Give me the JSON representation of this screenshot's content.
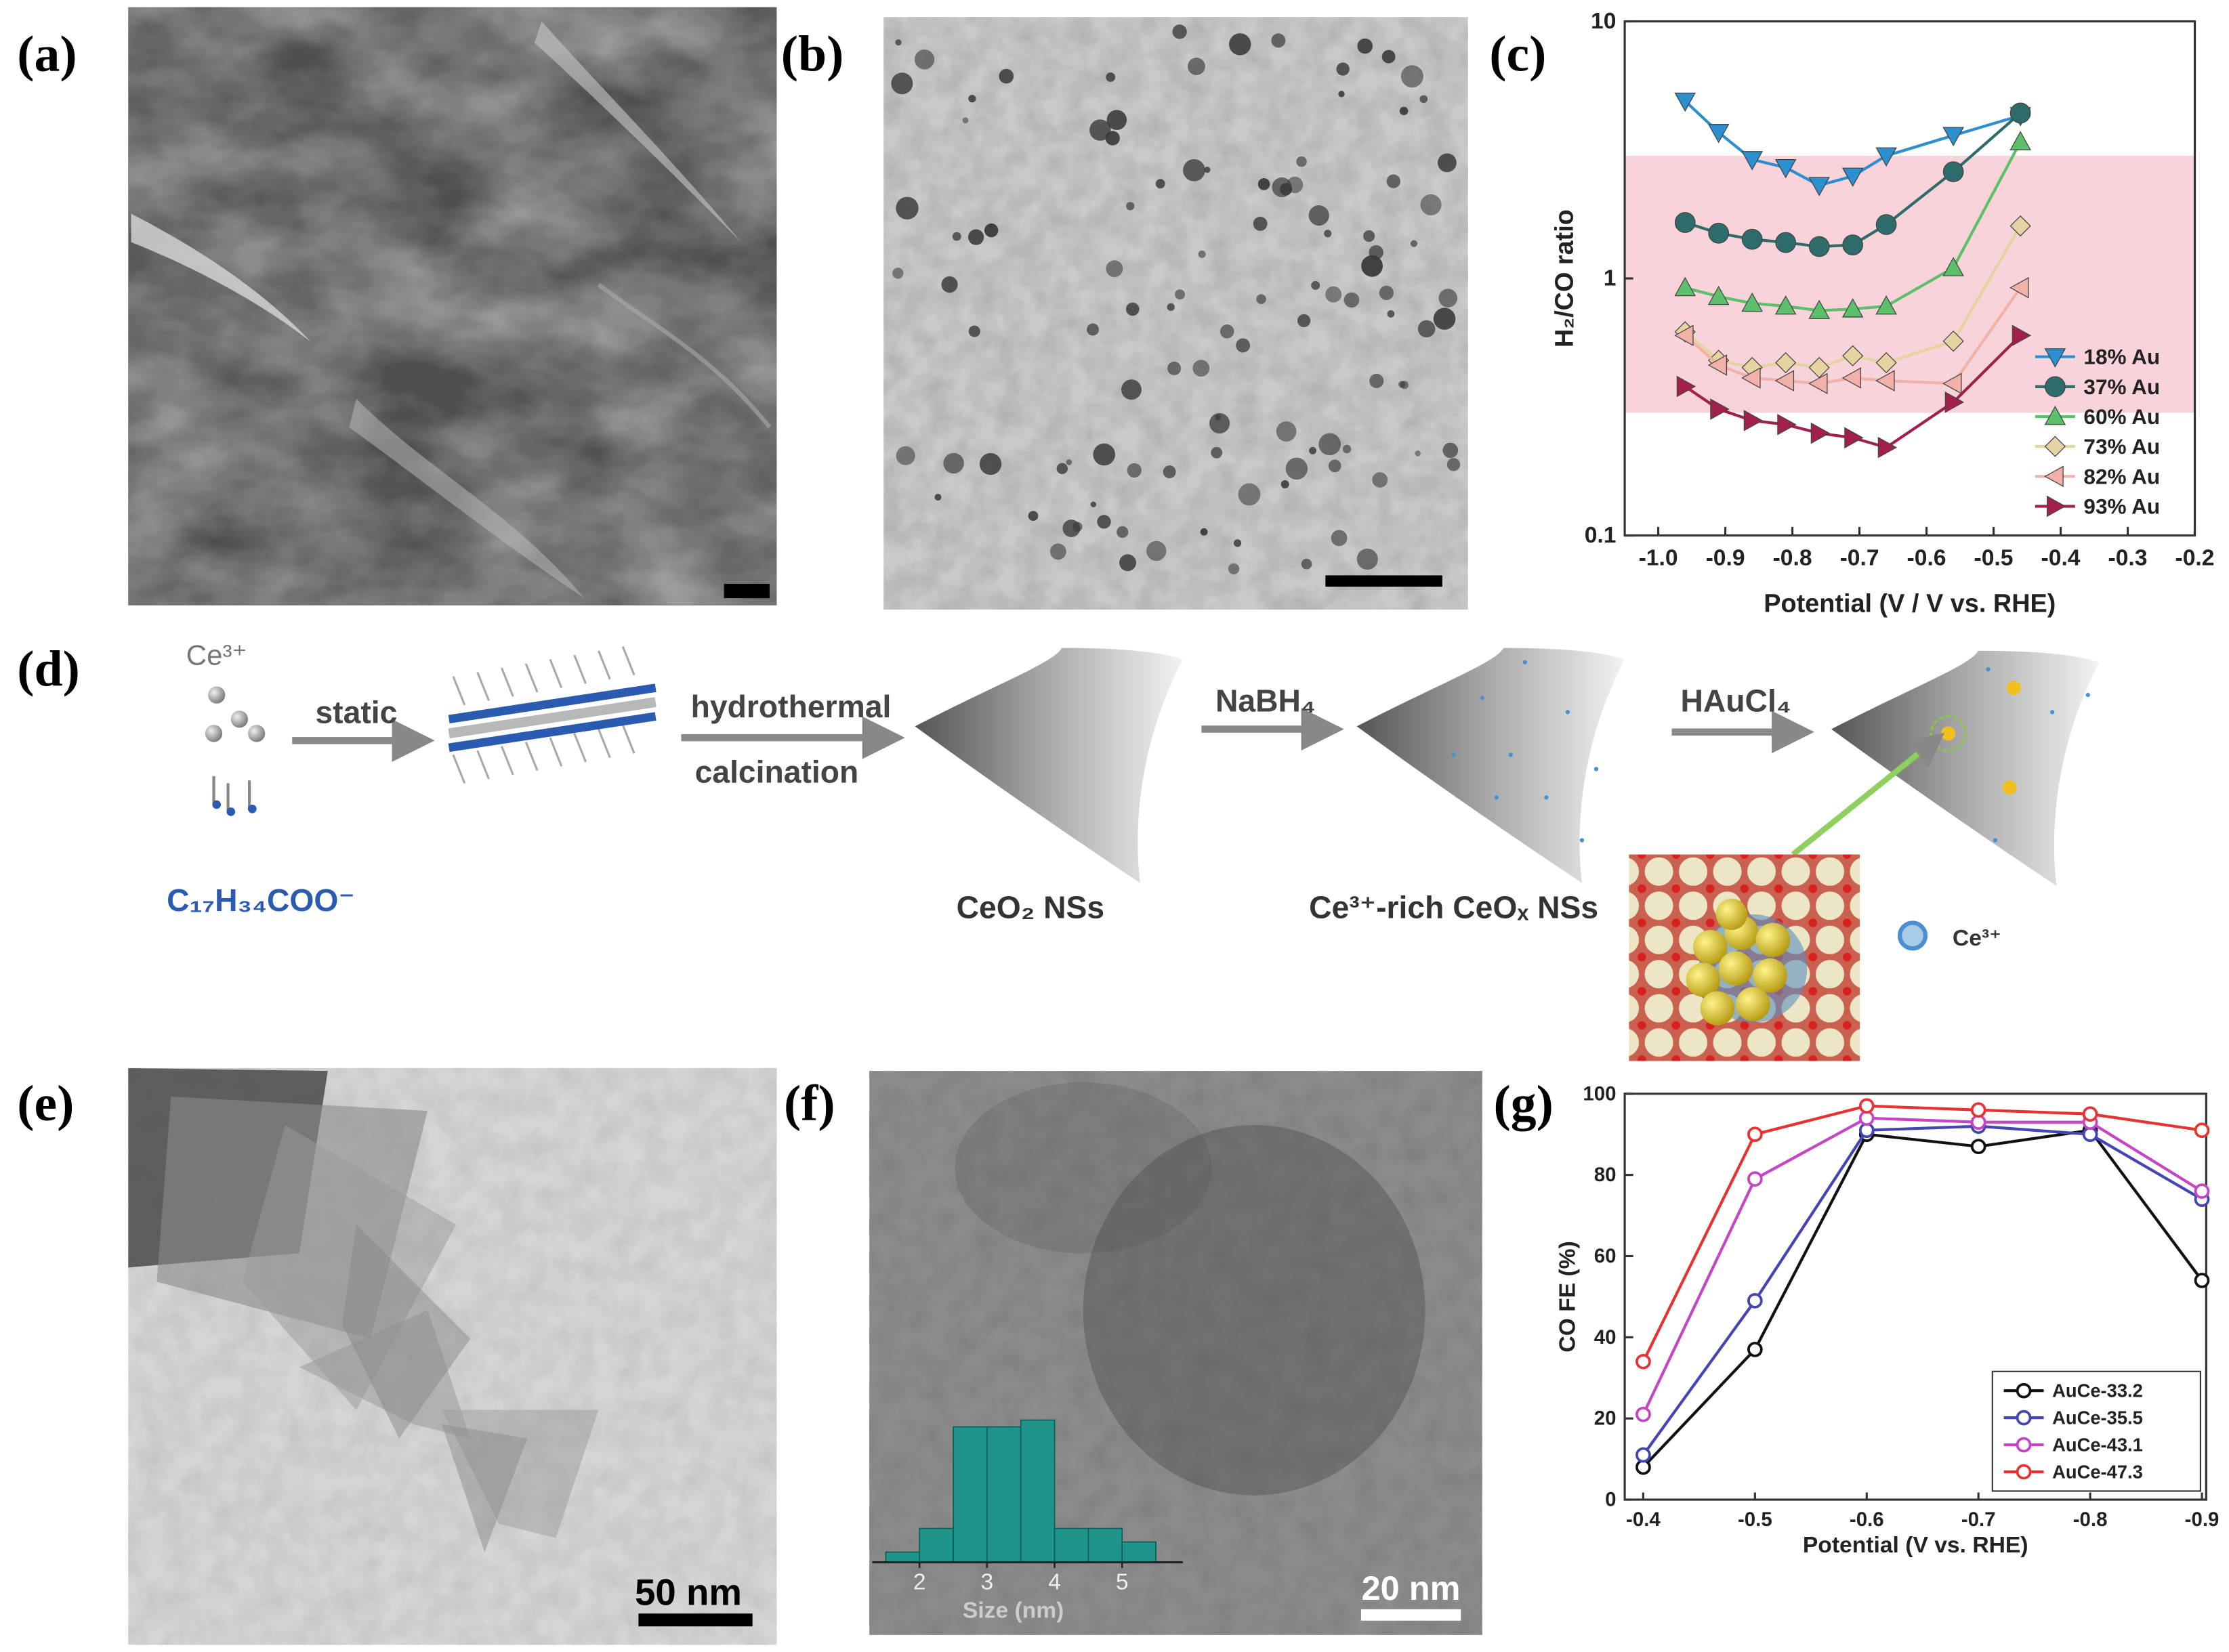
{
  "panel_labels": [
    "(a)",
    "(b)",
    "(c)",
    "(d)",
    "(e)",
    "(f)",
    "(g)"
  ],
  "scale_bars": {
    "e": "50 nm",
    "f": "20 nm"
  },
  "scheme": {
    "ion": "Ce³⁺",
    "ligand": "C₁₇H₃₄COO⁻",
    "step1": "static",
    "step2_top": "hydrothermal",
    "step2_bottom": "calcination",
    "step3": "NaBH₄",
    "step4": "HAuCl₄",
    "product1": "CeO₂ NSs",
    "product2": "Ce³⁺-rich CeOₓ NSs",
    "legend": "Ce³⁺"
  },
  "chart_data": [
    {
      "type": "line",
      "xlabel": "Potential (V / V vs. RHE)",
      "ylabel": "H₂/CO ratio",
      "log_y": true,
      "x": [
        -0.96,
        -0.91,
        -0.86,
        -0.81,
        -0.76,
        -0.71,
        -0.66,
        -0.56,
        -0.46
      ],
      "xlim": [
        -1.05,
        -0.2
      ],
      "xticks": [
        {
          "value": -1,
          "label": "-1.0"
        },
        -0.9,
        -0.8,
        -0.7,
        -0.6,
        -0.5,
        -0.4,
        -0.3,
        -0.2
      ],
      "ylim": [
        0.1,
        10
      ],
      "yticks": [
        0.1,
        1,
        10
      ],
      "shaded_range": [
        0.3,
        3
      ],
      "shade_color": "#f8d3da",
      "legend": "lower right",
      "series": [
        {
          "name": "18% Au",
          "color": "#2b8fd0",
          "marker": "triangle-down",
          "values": [
            4.9,
            3.7,
            2.9,
            2.7,
            2.3,
            2.5,
            3.0,
            3.6,
            4.3
          ]
        },
        {
          "name": "37% Au",
          "color": "#2e6b6b",
          "marker": "circle",
          "values": [
            1.65,
            1.5,
            1.42,
            1.38,
            1.33,
            1.35,
            1.62,
            2.6,
            4.4
          ]
        },
        {
          "name": "60% Au",
          "color": "#5cc06a",
          "marker": "triangle-up",
          "values": [
            0.92,
            0.85,
            0.8,
            0.78,
            0.75,
            0.76,
            0.78,
            1.1,
            3.4
          ]
        },
        {
          "name": "73% Au",
          "color": "#e6d3a2",
          "marker": "diamond",
          "values": [
            0.62,
            0.48,
            0.45,
            0.47,
            0.45,
            0.5,
            0.47,
            0.57,
            1.6
          ]
        },
        {
          "name": "82% Au",
          "color": "#f2b1a8",
          "marker": "triangle-left",
          "values": [
            0.6,
            0.46,
            0.41,
            0.4,
            0.39,
            0.41,
            0.4,
            0.39,
            0.92
          ]
        },
        {
          "name": "93% Au",
          "color": "#a2214b",
          "marker": "triangle-right",
          "values": [
            0.38,
            0.31,
            0.28,
            0.27,
            0.25,
            0.24,
            0.22,
            0.33,
            0.6
          ]
        }
      ]
    },
    {
      "type": "line",
      "xlabel": "Potential (V vs. RHE)",
      "ylabel": "CO FE (%)",
      "categories": [
        "-0.4",
        "-0.5",
        "-0.6",
        "-0.7",
        "-0.8",
        "-0.9"
      ],
      "ylim": [
        0,
        100
      ],
      "yticks": [
        0,
        20,
        40,
        60,
        80,
        100
      ],
      "legend": "lower right",
      "series": [
        {
          "name": "AuCe-33.2",
          "color": "#111111",
          "marker": "open-circle",
          "values": [
            8,
            37,
            90,
            87,
            91,
            54
          ]
        },
        {
          "name": "AuCe-35.5",
          "color": "#4444b4",
          "marker": "open-circle",
          "values": [
            11,
            49,
            91,
            92,
            90,
            74
          ]
        },
        {
          "name": "AuCe-43.1",
          "color": "#c545c5",
          "marker": "open-circle",
          "values": [
            21,
            79,
            94,
            93,
            93,
            76
          ]
        },
        {
          "name": "AuCe-47.3",
          "color": "#e83232",
          "marker": "open-circle",
          "values": [
            34,
            90,
            97,
            96,
            95,
            91
          ]
        }
      ]
    },
    {
      "type": "histogram",
      "xlabel": "Size (nm)",
      "bins": [
        1.5,
        2,
        2.5,
        3,
        3.5,
        4,
        4.5,
        5,
        5.5
      ],
      "values": [
        3,
        10,
        40,
        40,
        42,
        10,
        10,
        6
      ],
      "color": "#1f948a",
      "xlim": [
        1.3,
        5.9
      ],
      "xticks": [
        2,
        3,
        4,
        5
      ],
      "ylim": [
        0,
        45
      ]
    }
  ]
}
